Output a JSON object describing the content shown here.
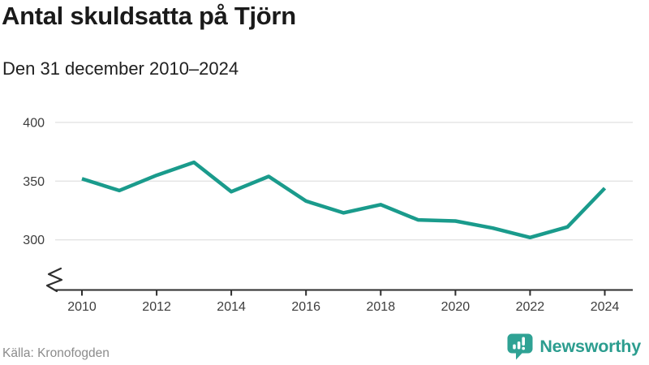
{
  "header": {
    "title": "Antal skuldsatta på Tjörn",
    "subtitle": "Den 31 december 2010–2024"
  },
  "footer": {
    "source": "Källa: Kronofogden",
    "brand": "Newsworthy"
  },
  "colors": {
    "line": "#1a9b8c",
    "brand_icon": "#2fa294",
    "brand_text": "#2c9d8f",
    "grid": "#e3e3e3",
    "axis": "#2e2e2e",
    "axis_label": "#3d3d3d",
    "title_text": "#1a1a1a",
    "muted_text": "#8b8b8b"
  },
  "chart_data": {
    "type": "line",
    "title": "Antal skuldsatta på Tjörn",
    "subtitle": "Den 31 december 2010–2024",
    "x": [
      2010,
      2011,
      2012,
      2013,
      2014,
      2015,
      2016,
      2017,
      2018,
      2019,
      2020,
      2021,
      2022,
      2023,
      2024
    ],
    "values": [
      352,
      342,
      355,
      366,
      341,
      354,
      333,
      323,
      330,
      317,
      316,
      310,
      302,
      311,
      344
    ],
    "series_name": "Antal skuldsatta",
    "series_color": "#1a9b8c",
    "xlabel": "",
    "ylabel": "",
    "ylim": [
      300,
      400
    ],
    "yticks": [
      300,
      350,
      400
    ],
    "xticks": [
      2010,
      2012,
      2014,
      2016,
      2018,
      2020,
      2022,
      2024
    ],
    "grid": true,
    "legend": false,
    "axis_break": true,
    "source": "Källa: Kronofogden"
  }
}
